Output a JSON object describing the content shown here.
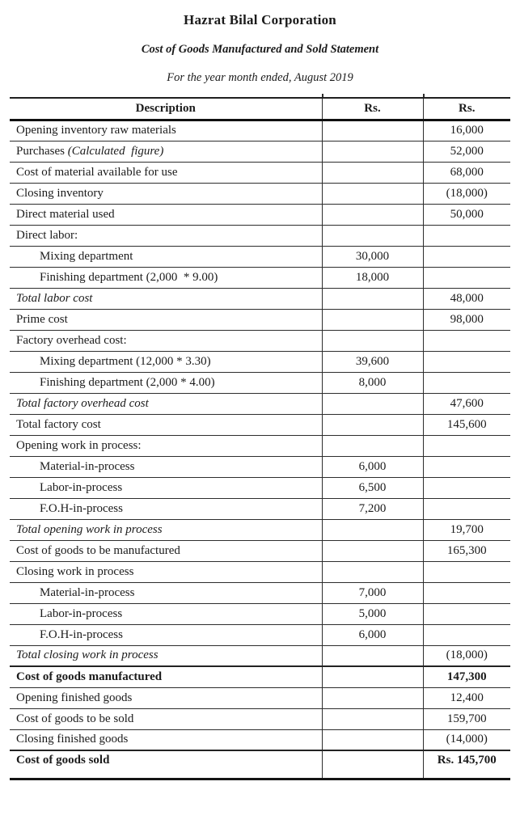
{
  "document": {
    "company": "Hazrat Bilal Corporation",
    "statement_title": "Cost of Goods Manufactured and Sold Statement",
    "period": "For the year month ended, August 2019"
  },
  "table": {
    "columns": [
      "Description",
      "Rs.",
      "Rs."
    ],
    "rows": [
      {
        "label": "Opening inventory raw materials",
        "amount": "",
        "total": "16,000"
      },
      {
        "label": "Purchases",
        "note": "(Calculated  figure)",
        "amount": "",
        "total": "52,000"
      },
      {
        "label": "Cost of material available for use",
        "amount": "",
        "total": "68,000"
      },
      {
        "label": "Closing inventory",
        "amount": "",
        "total": "(18,000)"
      },
      {
        "label": "Direct material used",
        "amount": "",
        "total": "50,000"
      },
      {
        "label": "Direct labor:",
        "amount": "",
        "total": ""
      },
      {
        "label": "Mixing department",
        "indent": true,
        "amount": "30,000",
        "total": ""
      },
      {
        "label": "Finishing department (2,000  * 9.00)",
        "indent": true,
        "amount": "18,000",
        "total": ""
      },
      {
        "label": "Total labor cost",
        "italic": true,
        "amount": "",
        "total": "48,000"
      },
      {
        "label": "Prime cost",
        "amount": "",
        "total": "98,000"
      },
      {
        "label": "Factory overhead cost:",
        "amount": "",
        "total": ""
      },
      {
        "label": "Mixing department (12,000 * 3.30)",
        "indent": true,
        "amount": "39,600",
        "total": ""
      },
      {
        "label": "Finishing department (2,000 * 4.00)",
        "indent": true,
        "amount": "8,000",
        "total": ""
      },
      {
        "label": "Total factory overhead cost",
        "italic": true,
        "amount": "",
        "total": "47,600"
      },
      {
        "label": "Total factory cost",
        "amount": "",
        "total": "145,600"
      },
      {
        "label": "Opening work in process:",
        "amount": "",
        "total": ""
      },
      {
        "label": "Material-in-process",
        "indent": true,
        "amount": "6,000",
        "total": ""
      },
      {
        "label": "Labor-in-process",
        "indent": true,
        "amount": "6,500",
        "total": ""
      },
      {
        "label": "F.O.H-in-process",
        "indent": true,
        "amount": "7,200",
        "total": ""
      },
      {
        "label": "Total opening work in process",
        "italic": true,
        "amount": "",
        "total": "19,700"
      },
      {
        "label": "Cost of goods to be manufactured",
        "amount": "",
        "total": "165,300"
      },
      {
        "label": "Closing work in process",
        "amount": "",
        "total": ""
      },
      {
        "label": "Material-in-process",
        "indent": true,
        "amount": "7,000",
        "total": ""
      },
      {
        "label": "Labor-in-process",
        "indent": true,
        "amount": "5,000",
        "total": ""
      },
      {
        "label": "F.O.H-in-process",
        "indent": true,
        "amount": "6,000",
        "total": ""
      },
      {
        "label": "Total closing work in process",
        "italic": true,
        "amount": "",
        "total": "(18,000)"
      },
      {
        "label": "Cost of goods manufactured",
        "bold": true,
        "amount": "",
        "total": "147,300"
      },
      {
        "label": "Opening finished goods",
        "amount": "",
        "total": "12,400"
      },
      {
        "label": "Cost of goods to be sold",
        "amount": "",
        "total": "159,700"
      },
      {
        "label": "Closing finished goods",
        "amount": "",
        "total": "(14,000)"
      },
      {
        "label": "Cost of goods sold",
        "bold": true,
        "last": true,
        "amount": "",
        "total": "Rs. 145,700"
      }
    ]
  },
  "colors": {
    "background": "#ffffff",
    "text": "#1b1b1b",
    "line_thin": "#2d2d2d",
    "line_thick": "#101010"
  }
}
